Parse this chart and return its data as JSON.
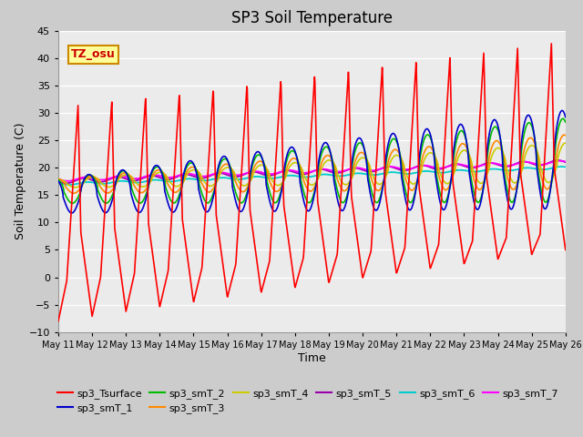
{
  "title": "SP3 Soil Temperature",
  "xlabel": "Time",
  "ylabel": "Soil Temperature (C)",
  "ylim": [
    -10,
    45
  ],
  "series_colors": {
    "sp3_Tsurface": "#FF0000",
    "sp3_smT_1": "#0000CC",
    "sp3_smT_2": "#00BB00",
    "sp3_smT_3": "#FF8800",
    "sp3_smT_4": "#CCCC00",
    "sp3_smT_5": "#9900AA",
    "sp3_smT_6": "#00CCCC",
    "sp3_smT_7": "#FF00FF"
  },
  "annotation_text": "TZ_osu",
  "bg_color": "#CCCCCC",
  "plot_bg_color": "#EBEBEB",
  "grid_color": "#FFFFFF",
  "title_fontsize": 12,
  "axis_fontsize": 9
}
